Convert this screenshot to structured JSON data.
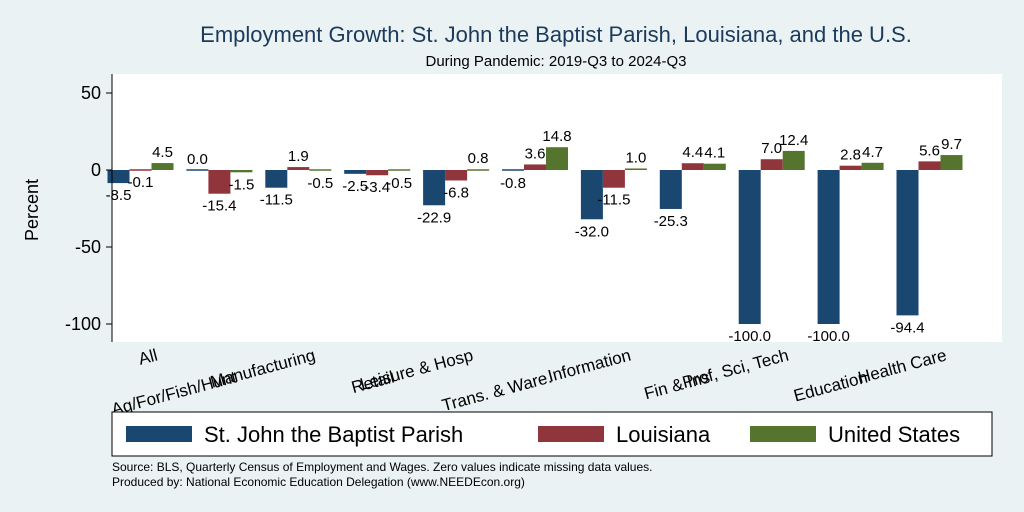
{
  "chart_data": {
    "type": "bar",
    "title": "Employment Growth: St. John the Baptist Parish, Louisiana, and the U.S.",
    "subtitle": "During Pandemic: 2019-Q3 to 2024-Q3",
    "ylabel": "Percent",
    "ylim": [
      -110,
      60
    ],
    "yticks": [
      50,
      0,
      -50,
      -100
    ],
    "grid": false,
    "legend_position": "bottom",
    "categories": [
      "All",
      "Ag/For/Fish/Hunt",
      "Manufacturing",
      "Retail",
      "Leisure & Hosp",
      "Trans. & Ware.",
      "Information",
      "Fin & Ins",
      "Prof, Sci, Tech",
      "Education",
      "Health Care"
    ],
    "series": [
      {
        "name": "St. John the Baptist Parish",
        "color": "#1a476f",
        "values": [
          -8.5,
          0.0,
          -11.5,
          -2.5,
          -22.9,
          -0.8,
          -32.0,
          -25.3,
          -100.0,
          -100.0,
          -94.4
        ]
      },
      {
        "name": "Louisiana",
        "color": "#90353b",
        "values": [
          -0.1,
          -15.4,
          1.9,
          -3.4,
          -6.8,
          3.6,
          -11.5,
          4.4,
          7.0,
          2.8,
          5.6
        ]
      },
      {
        "name": "United States",
        "color": "#55752f",
        "values": [
          4.5,
          -1.5,
          -0.5,
          -0.5,
          0.8,
          14.8,
          1.0,
          4.1,
          12.4,
          4.7,
          9.7
        ]
      }
    ],
    "value_labels": [
      [
        "-8.5",
        "0.0",
        "-11.5",
        "-2.5",
        "-22.9",
        "-0.8",
        "-32.0",
        "-25.3",
        "-100.0",
        "-100.0",
        "-94.4"
      ],
      [
        "-0.1",
        "-15.4",
        "1.9",
        "-3.4",
        "-6.8",
        "3.6",
        "-11.5",
        "4.4",
        "7.0",
        "2.8",
        "5.6"
      ],
      [
        "4.5",
        "-1.5",
        "-0.5",
        "-0.5",
        "0.8",
        "14.8",
        "1.0",
        "4.1",
        "12.4",
        "4.7",
        "9.7"
      ]
    ],
    "notes": [
      "Source: BLS, Quarterly Census of Employment and Wages. Zero values indicate missing data values.",
      "Produced by: National Economic Education Delegation (www.NEEDEcon.org)"
    ]
  }
}
